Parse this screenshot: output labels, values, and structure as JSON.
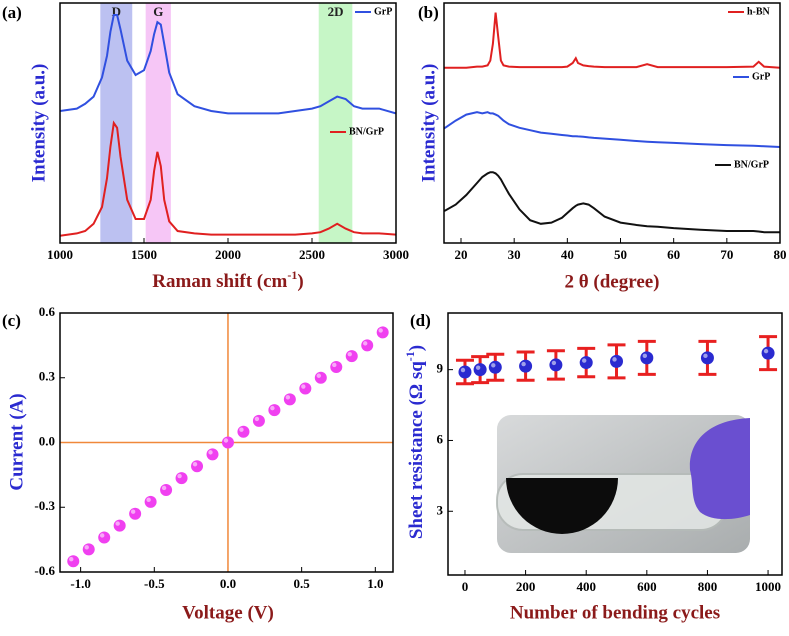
{
  "chart_data": [
    {
      "type": "line",
      "panel_label": "(a)",
      "xlabel": [
        "Raman shift (cm",
        "-1",
        ")"
      ],
      "ylabel": "Intensity (a.u.)",
      "xlim": [
        1000,
        3000
      ],
      "xticks": [
        1000,
        1500,
        2000,
        2500,
        3000
      ],
      "ylim": [
        0,
        10
      ],
      "bands": [
        {
          "label": "D",
          "from": 1240,
          "to": 1430,
          "color": "#8f98e8"
        },
        {
          "label": "G",
          "from": 1510,
          "to": 1660,
          "color": "#f0a0f0"
        },
        {
          "label": "2D",
          "from": 2540,
          "to": 2740,
          "color": "#a0f0a0"
        }
      ],
      "x": [
        1000,
        1100,
        1150,
        1200,
        1250,
        1280,
        1300,
        1320,
        1340,
        1360,
        1400,
        1450,
        1500,
        1540,
        1560,
        1580,
        1600,
        1620,
        1650,
        1700,
        1800,
        1900,
        2000,
        2100,
        2200,
        2300,
        2400,
        2500,
        2550,
        2600,
        2650,
        2700,
        2750,
        2800,
        2900,
        3000
      ],
      "series": [
        {
          "name": "GrP",
          "color": "#3050e0",
          "values": [
            5.5,
            5.6,
            5.8,
            6.1,
            6.9,
            7.8,
            8.8,
            9.5,
            9.5,
            8.9,
            7.6,
            7.0,
            7.2,
            8.0,
            8.7,
            9.2,
            9.1,
            8.3,
            7.1,
            6.2,
            5.7,
            5.5,
            5.4,
            5.4,
            5.4,
            5.4,
            5.5,
            5.6,
            5.7,
            5.9,
            6.1,
            6.0,
            5.7,
            5.6,
            5.6,
            5.4
          ]
        },
        {
          "name": "BN/GrP",
          "color": "#e02020",
          "values": [
            0.3,
            0.4,
            0.5,
            0.8,
            1.5,
            2.7,
            4.0,
            5.0,
            4.8,
            3.6,
            1.8,
            1.0,
            1.0,
            1.8,
            3.0,
            3.8,
            3.2,
            1.8,
            0.9,
            0.5,
            0.4,
            0.35,
            0.35,
            0.35,
            0.35,
            0.35,
            0.35,
            0.4,
            0.45,
            0.6,
            0.8,
            0.6,
            0.45,
            0.4,
            0.4,
            0.35
          ]
        }
      ]
    },
    {
      "type": "line",
      "panel_label": "(b)",
      "xlabel": "2 θ (degree)",
      "ylabel": "Intensity (a.u.)",
      "xlim": [
        16.8,
        80
      ],
      "xticks": [
        20,
        30,
        40,
        50,
        60,
        70,
        80
      ],
      "ylim": [
        0,
        10
      ],
      "x": [
        15,
        17,
        19,
        21,
        23,
        24,
        25,
        25.5,
        26,
        26.5,
        27,
        27.5,
        28,
        29,
        31,
        33,
        35,
        37,
        39,
        40,
        41,
        41.6,
        42,
        43,
        44,
        45,
        47,
        50,
        53,
        55,
        57,
        60,
        65,
        70,
        75,
        76,
        77,
        80
      ],
      "series": [
        {
          "name": "h-BN",
          "color": "#e02020",
          "values": [
            7.3,
            7.3,
            7.3,
            7.3,
            7.35,
            7.35,
            7.4,
            7.6,
            8.3,
            9.6,
            8.6,
            7.6,
            7.4,
            7.35,
            7.33,
            7.33,
            7.33,
            7.33,
            7.33,
            7.35,
            7.5,
            7.7,
            7.5,
            7.4,
            7.37,
            7.35,
            7.33,
            7.33,
            7.33,
            7.45,
            7.33,
            7.33,
            7.33,
            7.33,
            7.35,
            7.55,
            7.35,
            7.3
          ]
        },
        {
          "name": "GrP",
          "color": "#3050e0",
          "values": [
            4.6,
            4.8,
            5.1,
            5.35,
            5.45,
            5.4,
            5.45,
            5.4,
            5.4,
            5.35,
            5.3,
            5.2,
            5.1,
            4.95,
            4.8,
            4.7,
            4.6,
            4.55,
            4.5,
            4.48,
            4.45,
            4.45,
            4.44,
            4.43,
            4.4,
            4.38,
            4.35,
            4.3,
            4.25,
            4.22,
            4.2,
            4.17,
            4.12,
            4.08,
            4.05,
            4.04,
            4.03,
            4.0
          ]
        },
        {
          "name": "BN/GrP",
          "color": "#111111",
          "values": [
            1.25,
            1.35,
            1.6,
            2.0,
            2.5,
            2.75,
            2.9,
            2.95,
            2.95,
            2.9,
            2.8,
            2.65,
            2.45,
            2.05,
            1.4,
            0.95,
            0.8,
            0.85,
            1.05,
            1.25,
            1.45,
            1.55,
            1.6,
            1.65,
            1.6,
            1.45,
            1.1,
            0.85,
            0.75,
            0.7,
            0.68,
            0.62,
            0.55,
            0.5,
            0.5,
            0.48,
            0.45,
            0.45
          ]
        }
      ]
    },
    {
      "type": "scatter",
      "panel_label": "(c)",
      "xlabel": "Voltage (V)",
      "ylabel": "Current (A)",
      "xlim": [
        -1.14,
        1.12
      ],
      "xticks": [
        {
          "value": -1,
          "label": "-1.0"
        },
        -0.5,
        {
          "value": 0,
          "label": "0.0"
        },
        0.5,
        {
          "value": 1,
          "label": "1.0"
        }
      ],
      "ylim": [
        -0.6,
        0.6
      ],
      "yticks": [
        -0.6,
        -0.3,
        {
          "value": 0,
          "label": "0.0"
        },
        0.3,
        0.6
      ],
      "zero_lines": true,
      "zero_line_color": "#f0883a",
      "color": "#f040f0",
      "x": [
        -1.05,
        -0.945,
        -0.84,
        -0.735,
        -0.63,
        -0.525,
        -0.42,
        -0.315,
        -0.21,
        -0.105,
        0,
        0.105,
        0.21,
        0.315,
        0.42,
        0.525,
        0.63,
        0.735,
        0.84,
        0.945,
        1.05
      ],
      "values": [
        -0.55,
        -0.495,
        -0.44,
        -0.385,
        -0.33,
        -0.275,
        -0.22,
        -0.165,
        -0.11,
        -0.055,
        0,
        0.05,
        0.1,
        0.15,
        0.2,
        0.25,
        0.3,
        0.35,
        0.4,
        0.45,
        0.51
      ]
    },
    {
      "type": "scatter",
      "panel_label": "(d)",
      "xlabel": "Number of bending cycles",
      "ylabel": [
        "Sheet resistance (Ω sq",
        "-1",
        ")"
      ],
      "xlim": [
        -56,
        1046
      ],
      "xticks": [
        0,
        200,
        400,
        600,
        800,
        1000
      ],
      "ylim": [
        0.3,
        11.4
      ],
      "yticks": [
        3,
        6,
        9
      ],
      "color": "#2a2ad0",
      "error_color": "#e82020",
      "x": [
        0,
        50,
        100,
        200,
        300,
        400,
        500,
        600,
        800,
        1000
      ],
      "values": [
        8.9,
        9.0,
        9.1,
        9.15,
        9.2,
        9.3,
        9.35,
        9.5,
        9.5,
        9.7
      ],
      "errors": [
        0.5,
        0.55,
        0.55,
        0.6,
        0.6,
        0.6,
        0.7,
        0.7,
        0.7,
        0.7
      ]
    }
  ]
}
